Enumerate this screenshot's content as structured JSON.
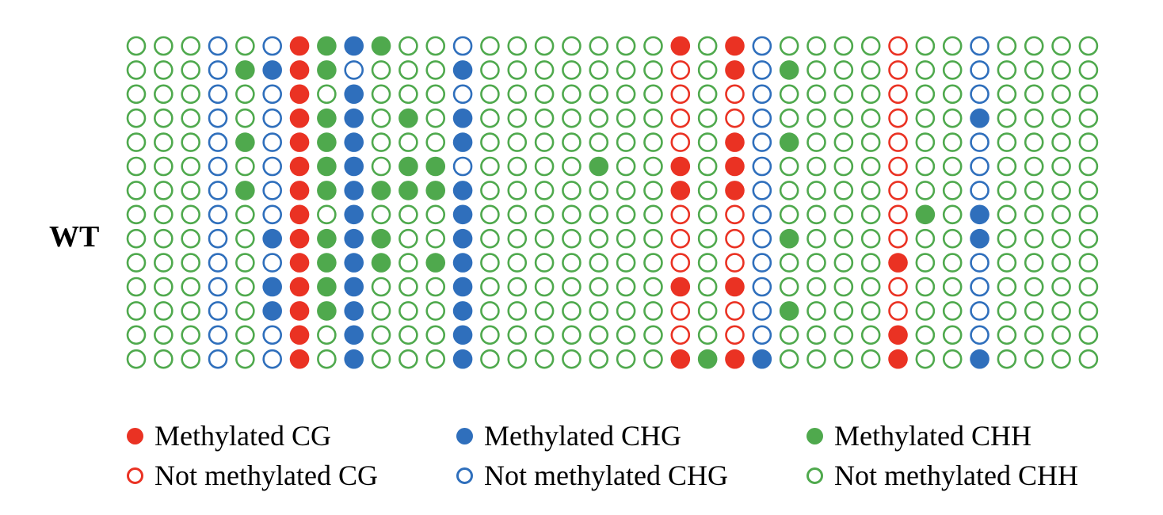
{
  "sample_label": "WT",
  "colors": {
    "CG": "#ea3223",
    "CHG": "#2f6fbc",
    "CHH": "#4fa94d"
  },
  "column_contexts": [
    "CHH",
    "CHH",
    "CHH",
    "CHG",
    "CHH",
    "CHG",
    "CG",
    "CHH",
    "CHG",
    "CHH",
    "CHH",
    "CHH",
    "CHG",
    "CHH",
    "CHH",
    "CHH",
    "CHH",
    "CHH",
    "CHH",
    "CHH",
    "CG",
    "CHH",
    "CG",
    "CHG",
    "CHH",
    "CHH",
    "CHH",
    "CHH",
    "CG",
    "CHH",
    "CHH",
    "CHG",
    "CHH",
    "CHH",
    "CHH",
    "CHH"
  ],
  "rows": [
    "000000111100000000001010000000000000",
    "000011110000100000000010100000000000",
    "000000101000000000000000000000000000",
    "000000111010100000000000000000010000",
    "000010111000100000000010100000000000",
    "000000111011000001001010000000000000",
    "000010111111100000001010000000000000",
    "000000101000100000000000000001010000",
    "000001111100100000000000100000010000",
    "000000111101100000000000000010000000",
    "000001111000100000001010000000000000",
    "000001111000100000000000100000000000",
    "000000101000100000000000000010000000",
    "000000101000100000001111000010010000"
  ],
  "legend": [
    {
      "context": "CG",
      "methylated": true,
      "label": "Methylated CG"
    },
    {
      "context": "CHG",
      "methylated": true,
      "label": "Methylated CHG"
    },
    {
      "context": "CHH",
      "methylated": true,
      "label": "Methylated CHH"
    },
    {
      "context": "CG",
      "methylated": false,
      "label": "Not methylated CG"
    },
    {
      "context": "CHG",
      "methylated": false,
      "label": "Not methylated CHG"
    },
    {
      "context": "CHH",
      "methylated": false,
      "label": "Not methylated CHH"
    }
  ]
}
